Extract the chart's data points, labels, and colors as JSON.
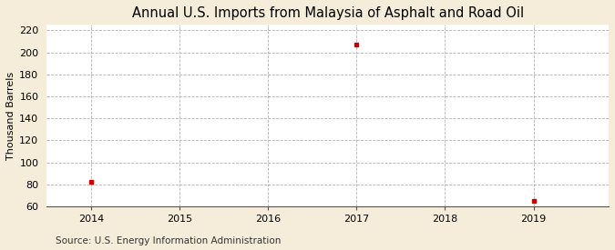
{
  "title": "Annual U.S. Imports from Malaysia of Asphalt and Road Oil",
  "ylabel": "Thousand Barrels",
  "source": "Source: U.S. Energy Information Administration",
  "x_data": [
    2014,
    2017,
    2019
  ],
  "y_data": [
    82,
    207,
    65
  ],
  "marker_color": "#cc0000",
  "marker": "s",
  "marker_size": 3.5,
  "xlim": [
    2013.5,
    2019.85
  ],
  "ylim": [
    60,
    225
  ],
  "yticks": [
    60,
    80,
    100,
    120,
    140,
    160,
    180,
    200,
    220
  ],
  "xticks": [
    2014,
    2015,
    2016,
    2017,
    2018,
    2019
  ],
  "fig_bg_color": "#f5edda",
  "plot_bg_color": "#ffffff",
  "grid_color": "#aaaaaa",
  "title_fontsize": 10.5,
  "axis_fontsize": 8,
  "label_fontsize": 8,
  "source_fontsize": 7.5
}
